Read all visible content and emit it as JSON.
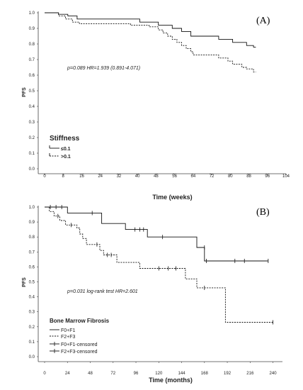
{
  "chart_data": [
    {
      "type": "line",
      "panel_label": "(A)",
      "title": "",
      "xlabel": "Time (weeks)",
      "ylabel": "PFS",
      "xlim": [
        0,
        104
      ],
      "ylim": [
        0,
        1.0
      ],
      "xticks": [
        0,
        8,
        16,
        24,
        32,
        40,
        48,
        56,
        64,
        72,
        80,
        88,
        96,
        104
      ],
      "yticks": [
        "0.0",
        "0.1",
        "0.2",
        "0.3",
        "0.4",
        "0.5",
        "0.6",
        "0.7",
        "0.8",
        "0.9",
        "1.0"
      ],
      "grid": false,
      "annotation": "p=0.089   HR=1.939 (0.891-4.071)",
      "legend": {
        "title": "Stiffness",
        "position": "bottom-left",
        "entries": [
          "≤0.1",
          ">0.1"
        ]
      },
      "series": [
        {
          "style": "solid",
          "points": [
            [
              0,
              1.0
            ],
            [
              5,
              1.0
            ],
            [
              6,
              0.99
            ],
            [
              9,
              0.99
            ],
            [
              10,
              0.98
            ],
            [
              13,
              0.98
            ],
            [
              14,
              0.96
            ],
            [
              40,
              0.96
            ],
            [
              41,
              0.94
            ],
            [
              48,
              0.94
            ],
            [
              49,
              0.92
            ],
            [
              54,
              0.92
            ],
            [
              55,
              0.9
            ],
            [
              58,
              0.9
            ],
            [
              59,
              0.88
            ],
            [
              62,
              0.88
            ],
            [
              63,
              0.85
            ],
            [
              74,
              0.85
            ],
            [
              75,
              0.83
            ],
            [
              80,
              0.83
            ],
            [
              81,
              0.81
            ],
            [
              86,
              0.81
            ],
            [
              87,
              0.79
            ],
            [
              89,
              0.79
            ],
            [
              90,
              0.78
            ],
            [
              91,
              0.78
            ]
          ]
        },
        {
          "style": "dashed",
          "points": [
            [
              0,
              1.0
            ],
            [
              5,
              1.0
            ],
            [
              6,
              0.98
            ],
            [
              8,
              0.98
            ],
            [
              9,
              0.96
            ],
            [
              11,
              0.96
            ],
            [
              12,
              0.94
            ],
            [
              14,
              0.94
            ],
            [
              15,
              0.93
            ],
            [
              36,
              0.93
            ],
            [
              37,
              0.92
            ],
            [
              44,
              0.92
            ],
            [
              45,
              0.91
            ],
            [
              48,
              0.91
            ],
            [
              49,
              0.89
            ],
            [
              50,
              0.89
            ],
            [
              51,
              0.87
            ],
            [
              52,
              0.87
            ],
            [
              53,
              0.85
            ],
            [
              54,
              0.85
            ],
            [
              55,
              0.83
            ],
            [
              56,
              0.83
            ],
            [
              57,
              0.81
            ],
            [
              58,
              0.81
            ],
            [
              59,
              0.79
            ],
            [
              60,
              0.79
            ],
            [
              61,
              0.77
            ],
            [
              62,
              0.77
            ],
            [
              63,
              0.75
            ],
            [
              64,
              0.73
            ],
            [
              74,
              0.73
            ],
            [
              75,
              0.71
            ],
            [
              78,
              0.71
            ],
            [
              79,
              0.69
            ],
            [
              80,
              0.69
            ],
            [
              81,
              0.67
            ],
            [
              84,
              0.67
            ],
            [
              85,
              0.65
            ],
            [
              86,
              0.65
            ],
            [
              87,
              0.64
            ],
            [
              89,
              0.64
            ],
            [
              90,
              0.62
            ],
            [
              91,
              0.62
            ]
          ]
        }
      ]
    },
    {
      "type": "line",
      "panel_label": "(B)",
      "title": "",
      "xlabel": "Time (months)",
      "ylabel": "PFS",
      "xlim": [
        0,
        250
      ],
      "ylim": [
        0,
        1.0
      ],
      "xticks": [
        0,
        24,
        48,
        72,
        96,
        120,
        144,
        168,
        192,
        216,
        240
      ],
      "yticks": [
        "0.0",
        "0.1",
        "0.2",
        "0.3",
        "0.4",
        "0.5",
        "0.6",
        "0.7",
        "0.8",
        "0.9",
        "1.0"
      ],
      "grid": false,
      "annotation": "p=0.031 log-rank test   HR=2.601",
      "legend": {
        "title": "Bone Marrow Fibrosis",
        "position": "bottom-left",
        "entries": [
          "F0+F1",
          "F2+F3",
          "F0+F1-censored",
          "F2+F3-censored"
        ]
      },
      "series": [
        {
          "name": "F0+F1",
          "style": "solid",
          "points": [
            [
              0,
              1.0
            ],
            [
              24,
              1.0
            ],
            [
              24,
              0.96
            ],
            [
              60,
              0.96
            ],
            [
              60,
              0.89
            ],
            [
              85,
              0.89
            ],
            [
              85,
              0.85
            ],
            [
              108,
              0.85
            ],
            [
              108,
              0.8
            ],
            [
              160,
              0.8
            ],
            [
              160,
              0.73
            ],
            [
              168,
              0.73
            ],
            [
              168,
              0.64
            ],
            [
              235,
              0.64
            ]
          ],
          "censored": [
            [
              6,
              1.0
            ],
            [
              12,
              1.0
            ],
            [
              18,
              1.0
            ],
            [
              50,
              0.96
            ],
            [
              95,
              0.85
            ],
            [
              100,
              0.85
            ],
            [
              104,
              0.85
            ],
            [
              124,
              0.8
            ],
            [
              168,
              0.73
            ],
            [
              170,
              0.64
            ],
            [
              200,
              0.64
            ],
            [
              210,
              0.64
            ],
            [
              235,
              0.64
            ]
          ]
        },
        {
          "name": "F2+F3",
          "style": "dashed",
          "points": [
            [
              0,
              1.0
            ],
            [
              5,
              1.0
            ],
            [
              5,
              0.97
            ],
            [
              10,
              0.97
            ],
            [
              10,
              0.94
            ],
            [
              16,
              0.94
            ],
            [
              16,
              0.91
            ],
            [
              22,
              0.91
            ],
            [
              22,
              0.88
            ],
            [
              34,
              0.88
            ],
            [
              34,
              0.86
            ],
            [
              37,
              0.86
            ],
            [
              37,
              0.82
            ],
            [
              40,
              0.82
            ],
            [
              40,
              0.79
            ],
            [
              44,
              0.79
            ],
            [
              44,
              0.75
            ],
            [
              58,
              0.75
            ],
            [
              58,
              0.71
            ],
            [
              62,
              0.71
            ],
            [
              62,
              0.68
            ],
            [
              76,
              0.68
            ],
            [
              76,
              0.63
            ],
            [
              100,
              0.63
            ],
            [
              100,
              0.59
            ],
            [
              148,
              0.59
            ],
            [
              148,
              0.52
            ],
            [
              160,
              0.52
            ],
            [
              160,
              0.46
            ],
            [
              190,
              0.46
            ],
            [
              190,
              0.23
            ],
            [
              240,
              0.23
            ]
          ],
          "censored": [
            [
              14,
              0.94
            ],
            [
              28,
              0.88
            ],
            [
              55,
              0.75
            ],
            [
              66,
              0.68
            ],
            [
              70,
              0.68
            ],
            [
              120,
              0.59
            ],
            [
              130,
              0.59
            ],
            [
              138,
              0.59
            ],
            [
              168,
              0.46
            ],
            [
              240,
              0.23
            ]
          ]
        }
      ]
    }
  ]
}
